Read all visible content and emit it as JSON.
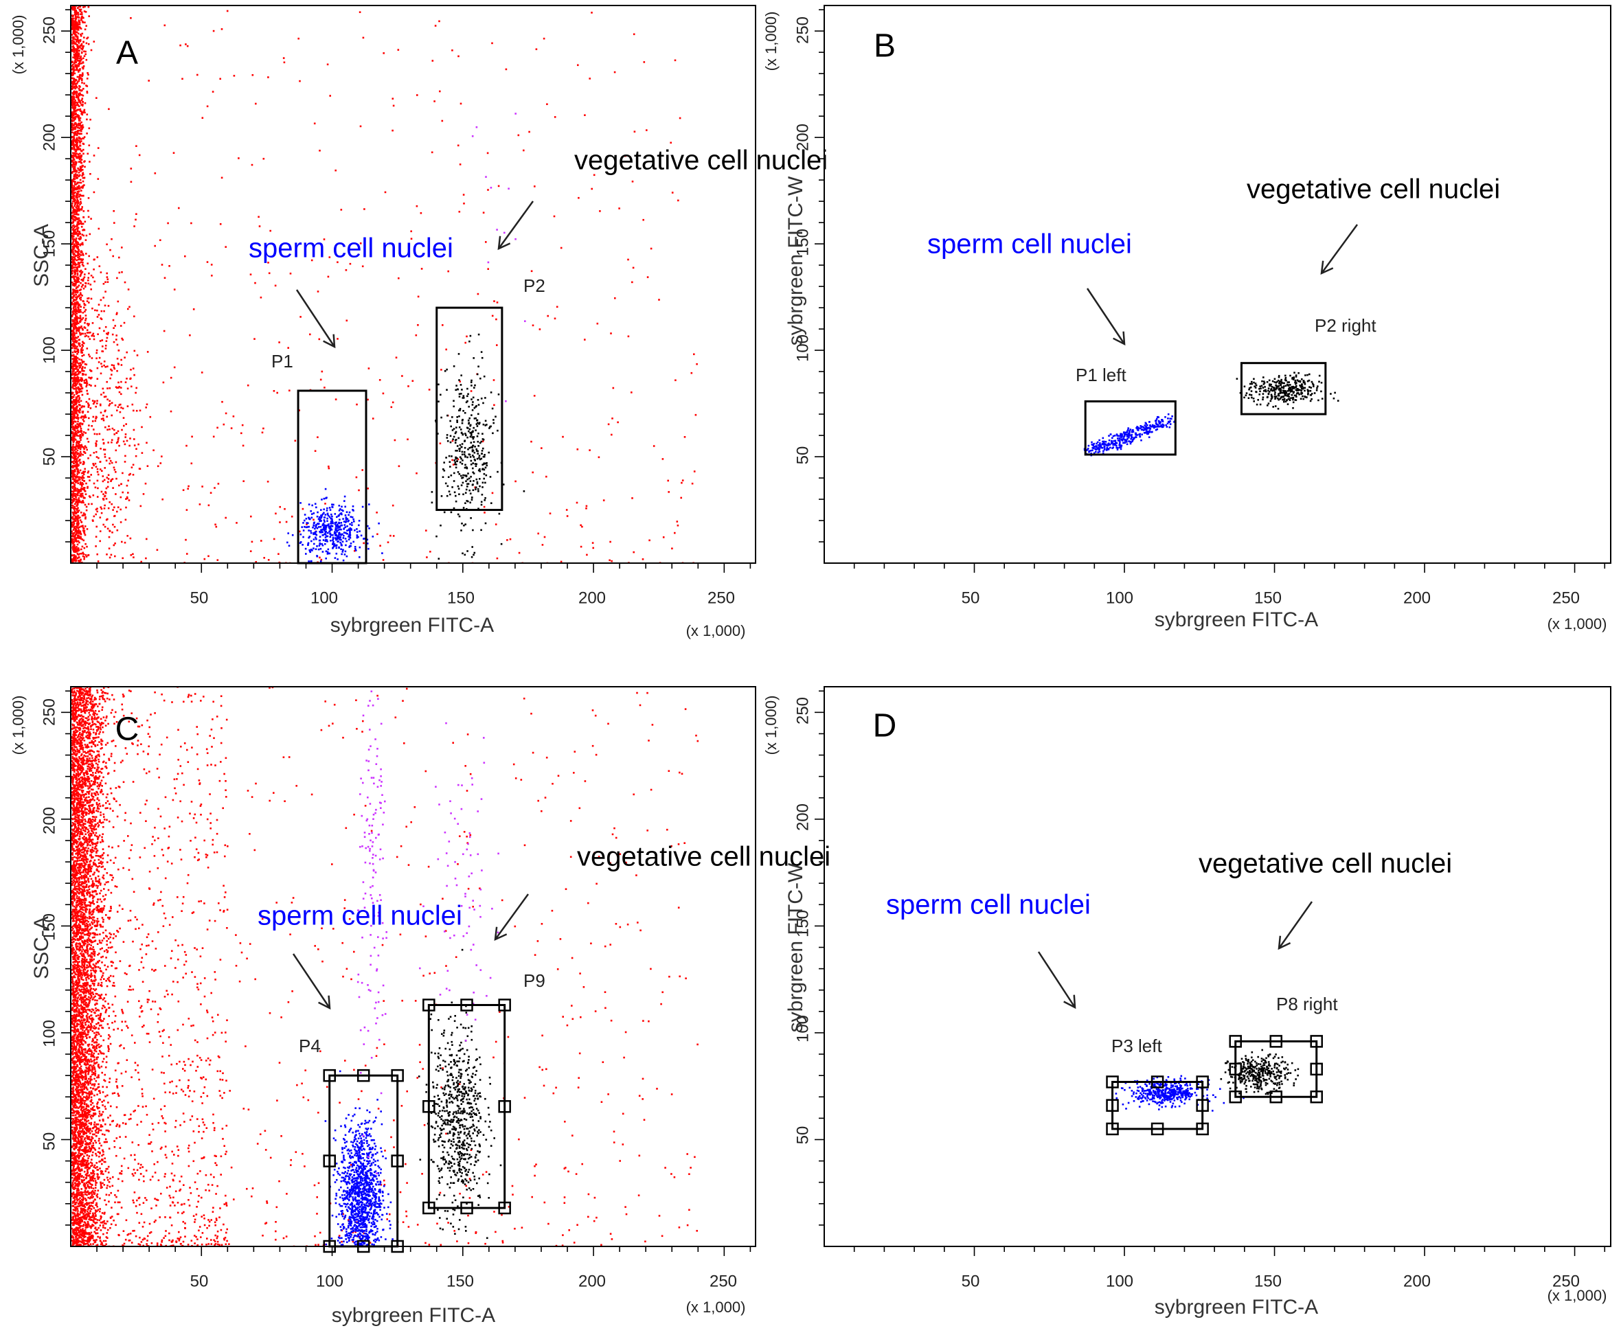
{
  "chart_data": [
    {
      "panel": "A",
      "type": "scatter",
      "xlabel": "sybrgreen FITC-A",
      "ylabel": "SSC-A",
      "x_unit": "(x 1,000)",
      "y_unit": "(x 1,000)",
      "xlim": [
        0,
        262
      ],
      "ylim": [
        0,
        262
      ],
      "x_ticks": [
        "50",
        "100",
        "150",
        "200",
        "250"
      ],
      "y_ticks": [
        "50",
        "100",
        "150",
        "200",
        "250"
      ],
      "grid": false,
      "colors": {
        "debris": "#ff0000",
        "sperm": "#0000ff",
        "vegetative": "#000000",
        "overlap": "#cc33ff"
      },
      "gates": [
        {
          "label": "P1",
          "x": [
            87,
            113
          ],
          "y": [
            0,
            81
          ]
        },
        {
          "label": "P2",
          "x": [
            140,
            165
          ],
          "y": [
            25,
            120
          ]
        }
      ],
      "annotations": [
        {
          "text": "sperm cell nuclei",
          "color": "#0000ff",
          "points_to": [
            101,
            99
          ]
        },
        {
          "text": "vegetative cell nuclei",
          "color": "#000000",
          "points_to": [
            164,
            147
          ]
        }
      ],
      "populations": [
        {
          "color": "#ff0000",
          "shape": "axis-hugging",
          "center": [
            2,
            130
          ],
          "spread": [
            2.5,
            90
          ],
          "n": 2600
        },
        {
          "color": "#ff0000",
          "shape": "cloud",
          "center": [
            12,
            70
          ],
          "spread": [
            7,
            40
          ],
          "n": 500
        },
        {
          "color": "#ff0000",
          "shape": "uniform",
          "x": [
            0,
            240
          ],
          "y": [
            0,
            262
          ],
          "n": 450
        },
        {
          "color": "#0000ff",
          "shape": "cloud",
          "center": [
            100,
            15
          ],
          "spread": [
            6,
            6
          ],
          "n": 420
        },
        {
          "color": "#000000",
          "shape": "cloud",
          "center": [
            152,
            52
          ],
          "spread": [
            5,
            20
          ],
          "n": 380
        },
        {
          "color": "#cc33ff",
          "shape": "cloud",
          "center": [
            160,
            160
          ],
          "spread": [
            6,
            40
          ],
          "n": 12
        }
      ]
    },
    {
      "panel": "B",
      "type": "scatter",
      "xlabel": "sybrgreen FITC-A",
      "ylabel": "sybrgreen FITC-W",
      "x_unit": "(x 1,000)",
      "y_unit": "(x 1,000)",
      "xlim": [
        0,
        262
      ],
      "ylim": [
        0,
        262
      ],
      "x_ticks": [
        "50",
        "100",
        "150",
        "200",
        "250"
      ],
      "y_ticks": [
        "50",
        "100",
        "150",
        "200",
        "250"
      ],
      "grid": false,
      "colors": {
        "sperm": "#0000ff",
        "vegetative": "#000000"
      },
      "gates": [
        {
          "label": "P1 left",
          "x": [
            87,
            117
          ],
          "y": [
            51,
            76
          ]
        },
        {
          "label": "P2 right",
          "x": [
            139,
            167
          ],
          "y": [
            70,
            94
          ]
        }
      ],
      "annotations": [
        {
          "text": "sperm cell nuclei",
          "color": "#0000ff",
          "points_to": [
            103,
            103
          ]
        },
        {
          "text": "vegetative cell nuclei",
          "color": "#000000",
          "points_to": [
            157,
            145
          ]
        }
      ],
      "populations": [
        {
          "color": "#0000ff",
          "shape": "diagonal",
          "from": [
            89,
            53
          ],
          "to": [
            115,
            67
          ],
          "n": 330
        },
        {
          "color": "#000000",
          "shape": "cloud",
          "center": [
            153,
            81
          ],
          "spread": [
            6,
            3.5
          ],
          "n": 330
        }
      ]
    },
    {
      "panel": "C",
      "type": "scatter",
      "xlabel": "sybrgreen FITC-A",
      "ylabel": "SSC-A",
      "x_unit": "(x 1,000)",
      "y_unit": "(x 1,000)",
      "xlim": [
        0,
        262
      ],
      "ylim": [
        0,
        262
      ],
      "x_ticks": [
        "50",
        "100",
        "150",
        "200",
        "250"
      ],
      "y_ticks": [
        "50",
        "100",
        "150",
        "200",
        "250"
      ],
      "grid": false,
      "colors": {
        "debris": "#ff0000",
        "sperm": "#0000ff",
        "vegetative": "#000000",
        "overlap": "#cc33ff"
      },
      "gates": [
        {
          "label": "P4",
          "x": [
            99,
            125
          ],
          "y": [
            0,
            80
          ]
        },
        {
          "label": "P9",
          "x": [
            137,
            166
          ],
          "y": [
            18,
            113
          ]
        }
      ],
      "annotations": [
        {
          "text": "sperm cell nuclei",
          "color": "#0000ff",
          "points_to": [
            100,
            111
          ]
        },
        {
          "text": "vegetative cell nuclei",
          "color": "#000000",
          "points_to": [
            161,
            144
          ]
        }
      ],
      "populations": [
        {
          "color": "#ff0000",
          "shape": "axis-hugging",
          "center": [
            4,
            130
          ],
          "spread": [
            6,
            90
          ],
          "n": 5200
        },
        {
          "color": "#ff0000",
          "shape": "uniform",
          "x": [
            0,
            60
          ],
          "y": [
            0,
            262
          ],
          "n": 900
        },
        {
          "color": "#ff0000",
          "shape": "uniform",
          "x": [
            0,
            240
          ],
          "y": [
            0,
            262
          ],
          "n": 600
        },
        {
          "color": "#0000ff",
          "shape": "cloud",
          "center": [
            111,
            25
          ],
          "spread": [
            4,
            16
          ],
          "n": 1100
        },
        {
          "color": "#000000",
          "shape": "cloud",
          "center": [
            148,
            60
          ],
          "spread": [
            5,
            22
          ],
          "n": 650
        },
        {
          "color": "#cc33ff",
          "shape": "cloud",
          "center": [
            116,
            170
          ],
          "spread": [
            3,
            50
          ],
          "n": 140
        },
        {
          "color": "#cc33ff",
          "shape": "cloud",
          "center": [
            150,
            170
          ],
          "spread": [
            6,
            35
          ],
          "n": 70
        }
      ]
    },
    {
      "panel": "D",
      "type": "scatter",
      "xlabel": "sybrgreen FITC-A",
      "ylabel": "sybrgreen FITC-W",
      "x_unit": "(x 1,000)",
      "y_unit": "(x 1,000)",
      "xlim": [
        0,
        262
      ],
      "ylim": [
        0,
        262
      ],
      "x_ticks": [
        "50",
        "100",
        "150",
        "200",
        "250"
      ],
      "y_ticks": [
        "50",
        "100",
        "150",
        "200",
        "250"
      ],
      "grid": false,
      "colors": {
        "sperm": "#0000ff",
        "vegetative": "#000000"
      },
      "gates": [
        {
          "label": "P3 left",
          "x": [
            96,
            126
          ],
          "y": [
            55,
            77
          ]
        },
        {
          "label": "P8 right",
          "x": [
            137,
            164
          ],
          "y": [
            70,
            96
          ]
        }
      ],
      "annotations": [
        {
          "text": "sperm cell nuclei",
          "color": "#0000ff",
          "points_to": [
            85,
            110
          ]
        },
        {
          "text": "vegetative cell nuclei",
          "color": "#000000",
          "points_to": [
            149,
            132
          ]
        }
      ],
      "populations": [
        {
          "color": "#0000ff",
          "shape": "cloud",
          "center": [
            114,
            72
          ],
          "spread": [
            6,
            2.8
          ],
          "n": 420
        },
        {
          "color": "#000000",
          "shape": "cloud",
          "center": [
            145,
            81
          ],
          "spread": [
            5,
            4
          ],
          "n": 340
        }
      ]
    }
  ]
}
